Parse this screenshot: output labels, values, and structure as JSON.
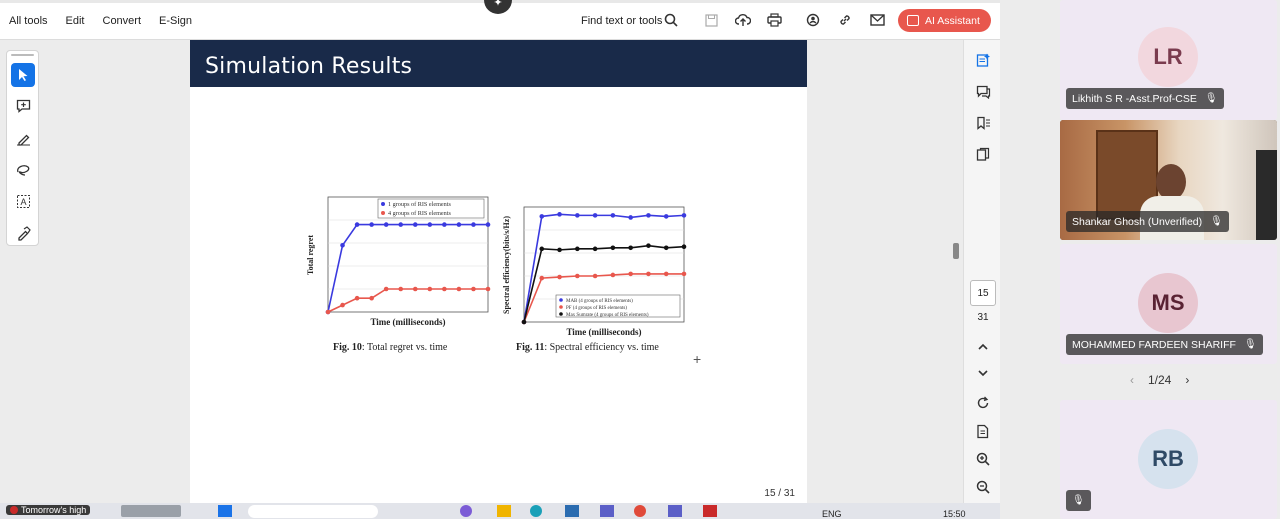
{
  "menu": {
    "all_tools": "All tools",
    "edit": "Edit",
    "convert": "Convert",
    "esign": "E-Sign"
  },
  "toolbar": {
    "find": "Find text or tools",
    "ai_assistant": "AI Assistant"
  },
  "slide": {
    "title": "Simulation Results",
    "page_label": "15 / 31",
    "fig10": {
      "caption_bold": "Fig. 10",
      "caption_text": ": Total regret vs. time",
      "ylabel": "Total regret",
      "xlabel": "Time (milliseconds)",
      "legend": [
        "1 groups of RIS elements",
        "4 groups of RIS elements"
      ]
    },
    "fig11": {
      "caption_bold": "Fig. 11",
      "caption_text": ": Spectral efficiency vs. time",
      "ylabel": "Spectral efficiency(bits/s/Hz)",
      "xlabel": "Time (milliseconds)",
      "legend": [
        "MAB (4 groups of RIS elements)",
        "PF (4 groups of RIS elements)",
        "Max Sumrate (4 groups of RIS elements)"
      ]
    }
  },
  "chart_data": [
    {
      "type": "line",
      "xlabel": "Time (milliseconds)",
      "ylabel": "Total regret",
      "series": [
        {
          "name": "1 groups of RIS elements",
          "color": "#3a3adf",
          "values": [
            0,
            14.5,
            19,
            19,
            19,
            19,
            19,
            19,
            19,
            19,
            19,
            19
          ]
        },
        {
          "name": "4 groups of RIS elements",
          "color": "#e8574d",
          "values": [
            0,
            1.5,
            3,
            3,
            5,
            5,
            5,
            5,
            5,
            5,
            5,
            5
          ]
        }
      ],
      "ylim": [
        0,
        25
      ]
    },
    {
      "type": "line",
      "xlabel": "Time (milliseconds)",
      "ylabel": "Spectral efficiency(bits/s/Hz)",
      "series": [
        {
          "name": "MAB (4 groups of RIS elements)",
          "color": "#3a3adf",
          "values": [
            0,
            10.1,
            10.3,
            10.2,
            10.2,
            10.2,
            10.0,
            10.2,
            10.1,
            10.2
          ]
        },
        {
          "name": "PF (4 groups of RIS elements)",
          "color": "#e8574d",
          "values": [
            0,
            4.2,
            4.3,
            4.4,
            4.4,
            4.5,
            4.6,
            4.6,
            4.6,
            4.6
          ]
        },
        {
          "name": "Max Sumrate (4 groups of RIS elements)",
          "color": "#111111",
          "values": [
            0,
            7.0,
            6.9,
            7.0,
            7.0,
            7.1,
            7.1,
            7.3,
            7.1,
            7.2
          ]
        }
      ],
      "ylim": [
        0,
        11
      ]
    }
  ],
  "rightrail": {
    "current_page": "15",
    "total_pages": "31"
  },
  "participants": [
    {
      "initials": "LR",
      "name": "Likhith S R -Asst.Prof-CSE",
      "avatar_bg": "#f2d7de",
      "avatar_fg": "#7a3b4e"
    },
    {
      "initials": "",
      "name": "Shankar Ghosh (Unverified)",
      "video": true
    },
    {
      "initials": "MS",
      "name": "MOHAMMED FARDEEN SHARIFF",
      "avatar_bg": "#e8c6d0",
      "avatar_fg": "#5a2233"
    },
    {
      "initials": "RB",
      "name": "",
      "avatar_bg": "#d6e2ee",
      "avatar_fg": "#2f4a66"
    }
  ],
  "pager": {
    "label": "1/24"
  },
  "taskbar": {
    "notification": "Tomorrow's high",
    "lang": "ENG",
    "time": "15:50"
  }
}
